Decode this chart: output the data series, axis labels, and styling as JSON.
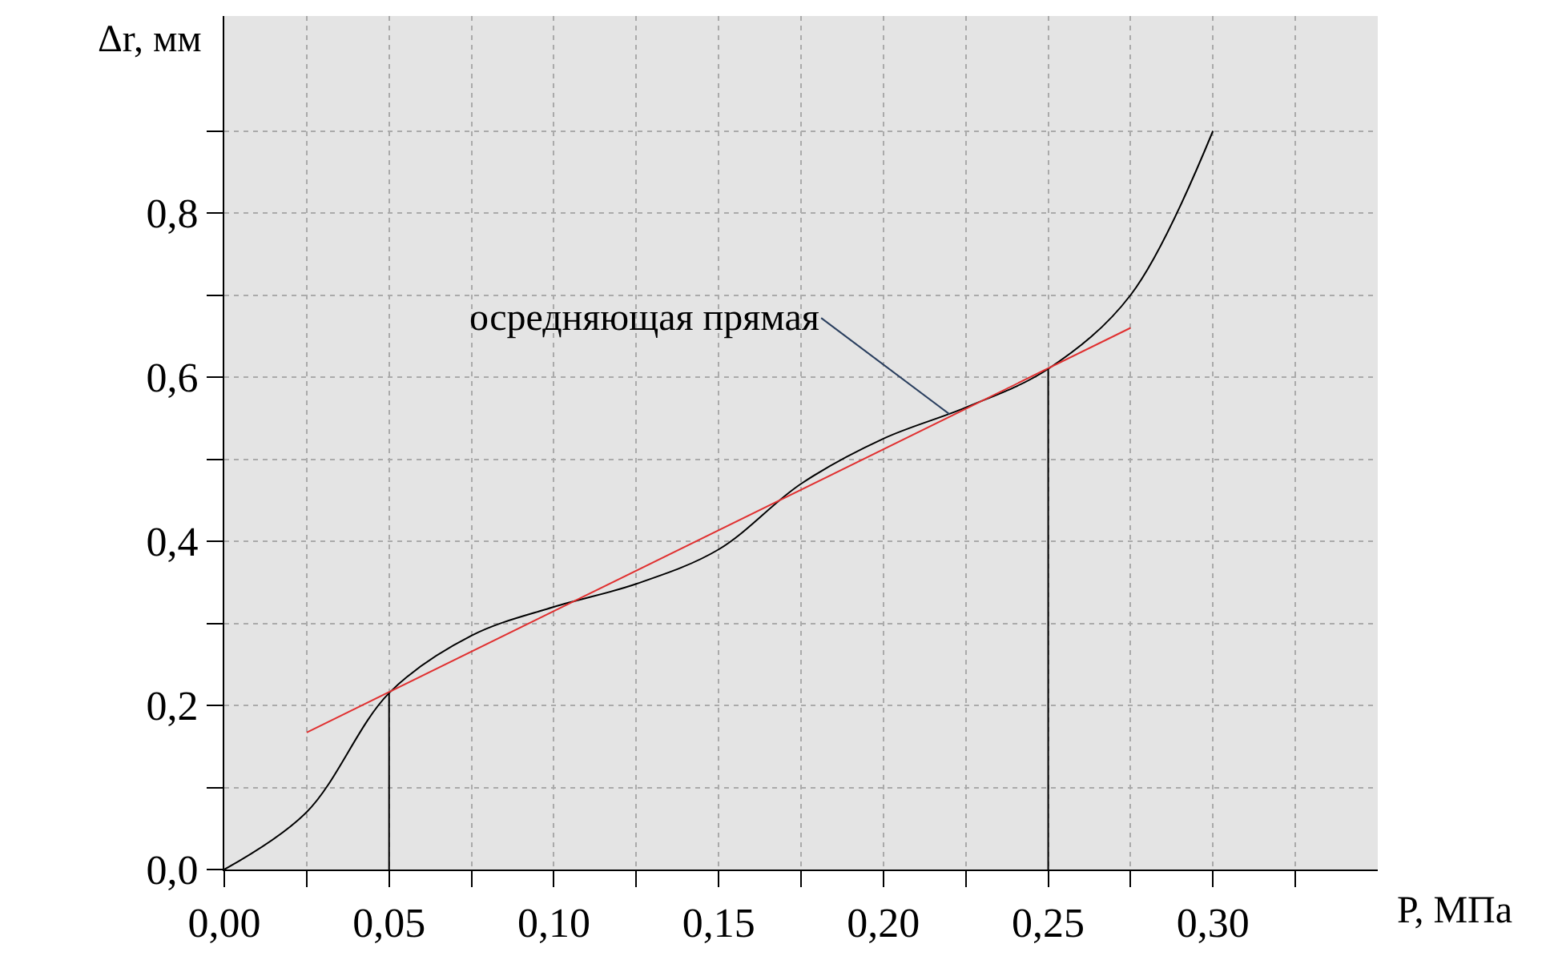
{
  "chart_data": {
    "type": "line",
    "xlabel": "P, МПа",
    "ylabel": "Δr, мм",
    "series": [
      {
        "color": "#000000",
        "x": [
          0,
          0.025,
          0.05,
          0.075,
          0.1,
          0.125,
          0.15,
          0.175,
          0.2,
          0.225,
          0.25,
          0.275,
          0.3
        ],
        "values": [
          0,
          0.07,
          0.215,
          0.285,
          0.32,
          0.348,
          0.39,
          0.47,
          0.525,
          0.563,
          0.61,
          0.7,
          0.9
        ]
      },
      {
        "color": "#e03030",
        "x": [
          0.025,
          0.275
        ],
        "values": [
          0.167,
          0.66
        ]
      },
      {
        "color": "#000000",
        "x": [
          0.05,
          0.05
        ],
        "values": [
          0,
          0.215
        ]
      },
      {
        "color": "#000000",
        "x": [
          0.25,
          0.25
        ],
        "values": [
          0,
          0.61
        ]
      }
    ],
    "annotations": [
      {
        "text": "осредняющая прямая",
        "x": 0.22,
        "y": 0.555
      }
    ],
    "xlim": [
      0,
      0.35
    ],
    "ylim": [
      0,
      1.04
    ],
    "xticks": [
      {
        "value": 0,
        "label": "0,00"
      },
      {
        "value": 0.025,
        "label": null
      },
      {
        "value": 0.05,
        "label": "0,05"
      },
      {
        "value": 0.075,
        "label": null
      },
      {
        "value": 0.1,
        "label": "0,10"
      },
      {
        "value": 0.125,
        "label": null
      },
      {
        "value": 0.15,
        "label": "0,15"
      },
      {
        "value": 0.175,
        "label": null
      },
      {
        "value": 0.2,
        "label": "0,20"
      },
      {
        "value": 0.225,
        "label": null
      },
      {
        "value": 0.25,
        "label": "0,25"
      },
      {
        "value": 0.275,
        "label": null
      },
      {
        "value": 0.3,
        "label": "0,30"
      },
      {
        "value": 0.325,
        "label": null
      }
    ],
    "yticks": [
      {
        "value": 0,
        "label": "0,0"
      },
      {
        "value": 0.1,
        "label": null
      },
      {
        "value": 0.2,
        "label": "0,2"
      },
      {
        "value": 0.3,
        "label": null
      },
      {
        "value": 0.4,
        "label": "0,4"
      },
      {
        "value": 0.5,
        "label": null
      },
      {
        "value": 0.6,
        "label": "0,6"
      },
      {
        "value": 0.7,
        "label": null
      },
      {
        "value": 0.8,
        "label": "0,8"
      },
      {
        "value": 0.9,
        "label": null
      }
    ],
    "grid": true,
    "marker": "none",
    "line_style": "solid"
  }
}
